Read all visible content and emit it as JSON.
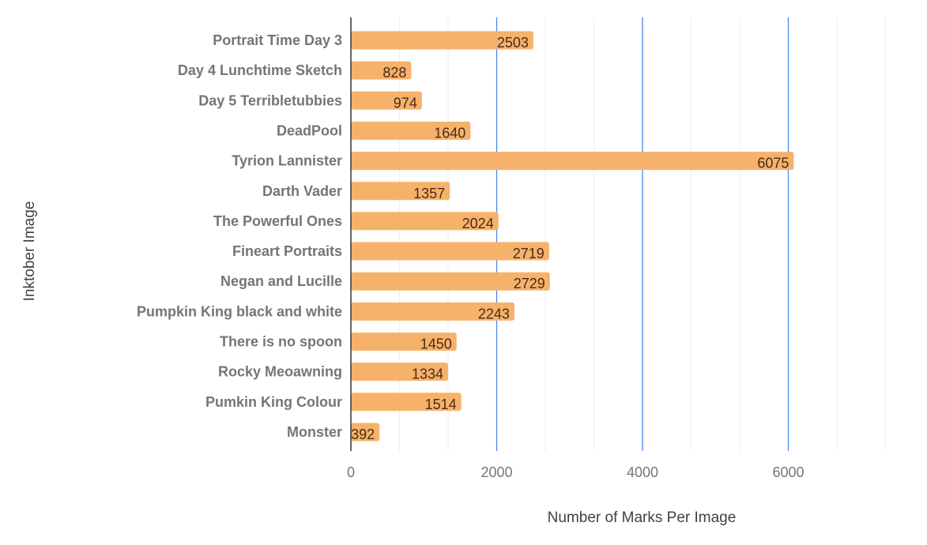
{
  "chart_data": {
    "type": "bar",
    "orientation": "horizontal",
    "categories": [
      "Portrait Time Day 3",
      "Day 4 Lunchtime Sketch",
      "Day 5 Terribletubbies",
      "DeadPool",
      "Tyrion Lannister",
      "Darth Vader",
      "The Powerful Ones",
      "Fineart Portraits",
      "Negan and Lucille",
      "Pumpkin King black and white",
      "There is no spoon",
      "Rocky Meoawning",
      "Pumkin King Colour",
      "Monster"
    ],
    "values": [
      2503,
      828,
      974,
      1640,
      6075,
      1357,
      2024,
      2719,
      2729,
      2243,
      1450,
      1334,
      1514,
      392
    ],
    "title": "",
    "xlabel": "Number of Marks Per Image",
    "ylabel": "Inktober Image",
    "xlim": [
      0,
      7400
    ],
    "xticks": [
      0,
      2000,
      4000,
      6000
    ],
    "xtick_labels": [
      "0",
      "2000",
      "4000",
      "6000"
    ],
    "minor_grid_step": 666.67,
    "grid": true,
    "legend": "none",
    "data_labels": true
  },
  "colors": {
    "bar": "#f6b26b",
    "major_grid": "#4a86e8",
    "minor_grid": "#eeeeee",
    "zero_axis": "#333333",
    "data_label": "#4a2a16"
  }
}
